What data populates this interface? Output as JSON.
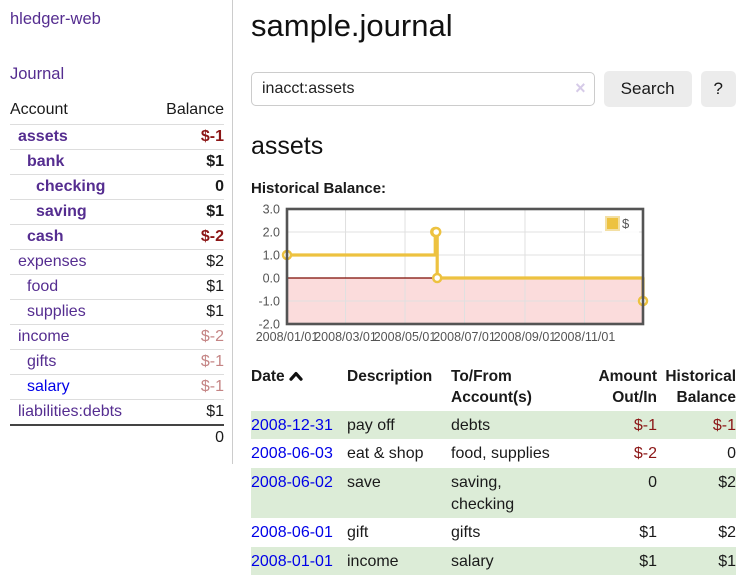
{
  "app": {
    "brand": "hledger-web"
  },
  "colors": {
    "link_purple": "#552d90",
    "link_blue": "#0000e8",
    "negative_strong": "#8b1515",
    "negative_soft": "#c48484",
    "stripe_green": "#dcecd7",
    "series_yellow": "#edc240",
    "negative_fill": "#fbdcdc",
    "zero_line": "#7c0a02",
    "grid_line": "#e0e0e0",
    "chart_border": "#545454",
    "axis_text": "#545454"
  },
  "sidebar": {
    "journal_link": "Journal",
    "accounts": {
      "header_account": "Account",
      "header_balance": "Balance",
      "rows": [
        {
          "name": "assets",
          "indent": 0,
          "balance": "$-1",
          "bold": true
        },
        {
          "name": "bank",
          "indent": 1,
          "balance": "$1",
          "bold": true
        },
        {
          "name": "checking",
          "indent": 2,
          "balance": "0",
          "bold": true
        },
        {
          "name": "saving",
          "indent": 2,
          "balance": "$1",
          "bold": true
        },
        {
          "name": "cash",
          "indent": 1,
          "balance": "$-2",
          "bold": true
        },
        {
          "name": "expenses",
          "indent": 0,
          "balance": "$2",
          "bold": false
        },
        {
          "name": "food",
          "indent": 1,
          "balance": "$1",
          "bold": false
        },
        {
          "name": "supplies",
          "indent": 1,
          "balance": "$1",
          "bold": false
        },
        {
          "name": "income",
          "indent": 0,
          "balance": "$-2",
          "bold": false
        },
        {
          "name": "gifts",
          "indent": 1,
          "balance": "$-1",
          "bold": false
        },
        {
          "name": "salary",
          "indent": 1,
          "balance": "$-1",
          "bold": false,
          "blue": true
        },
        {
          "name": "liabilities:debts",
          "indent": 0,
          "balance": "$1",
          "bold": false
        }
      ],
      "total": "0"
    }
  },
  "main": {
    "title": "sample.journal",
    "search": {
      "value": "inacct:assets",
      "clear_label": "×",
      "search_button": "Search",
      "help_button": "?"
    },
    "account_heading": "assets",
    "chart_label": "Historical Balance:"
  },
  "chart_data": {
    "type": "line",
    "title": "Historical Balance:",
    "step": true,
    "series": [
      {
        "name": "$",
        "color": "#edc240",
        "x_days": [
          0,
          152,
          153,
          154,
          365
        ],
        "x_dates": [
          "2008-01-01",
          "2008-06-01",
          "2008-06-02",
          "2008-06-03",
          "2008-12-31"
        ],
        "values": [
          1,
          2,
          2,
          0,
          -1
        ]
      }
    ],
    "x_tick_labels": [
      "2008/01/01",
      "2008/03/01",
      "2008/05/01",
      "2008/07/01",
      "2008/09/01",
      "2008/11/01"
    ],
    "x_tick_days": [
      0,
      60,
      121,
      182,
      244,
      305
    ],
    "xlim_days": [
      0,
      365
    ],
    "y_tick_labels": [
      "3.0",
      "2.0",
      "1.0",
      "0.0",
      "-1.0",
      "-2.0"
    ],
    "y_ticks": [
      3,
      2,
      1,
      0,
      -1,
      -2
    ],
    "ylim": [
      -2,
      3
    ],
    "grid": true,
    "legend": {
      "position": "top-right",
      "entries": [
        {
          "label": "$",
          "color": "#edc240"
        }
      ]
    },
    "negative_region_fill": "#fbdcdc",
    "zero_line_color": "#7c0a02"
  },
  "register": {
    "columns": [
      "Date",
      "Description",
      "To/From Account(s)",
      "Amount Out/In",
      "Historical Balance"
    ],
    "sort_column": "Date",
    "sort_direction": "ascending",
    "rows": [
      {
        "date": "2008-12-31",
        "description": "pay off",
        "accounts": "debts",
        "amount": "$-1",
        "balance": "$-1"
      },
      {
        "date": "2008-06-03",
        "description": "eat & shop",
        "accounts": "food, supplies",
        "amount": "$-2",
        "balance": "0"
      },
      {
        "date": "2008-06-02",
        "description": "save",
        "accounts": "saving, checking",
        "amount": "0",
        "balance": "$2"
      },
      {
        "date": "2008-06-01",
        "description": "gift",
        "accounts": "gifts",
        "amount": "$1",
        "balance": "$2"
      },
      {
        "date": "2008-01-01",
        "description": "income",
        "accounts": "salary",
        "amount": "$1",
        "balance": "$1"
      }
    ]
  }
}
